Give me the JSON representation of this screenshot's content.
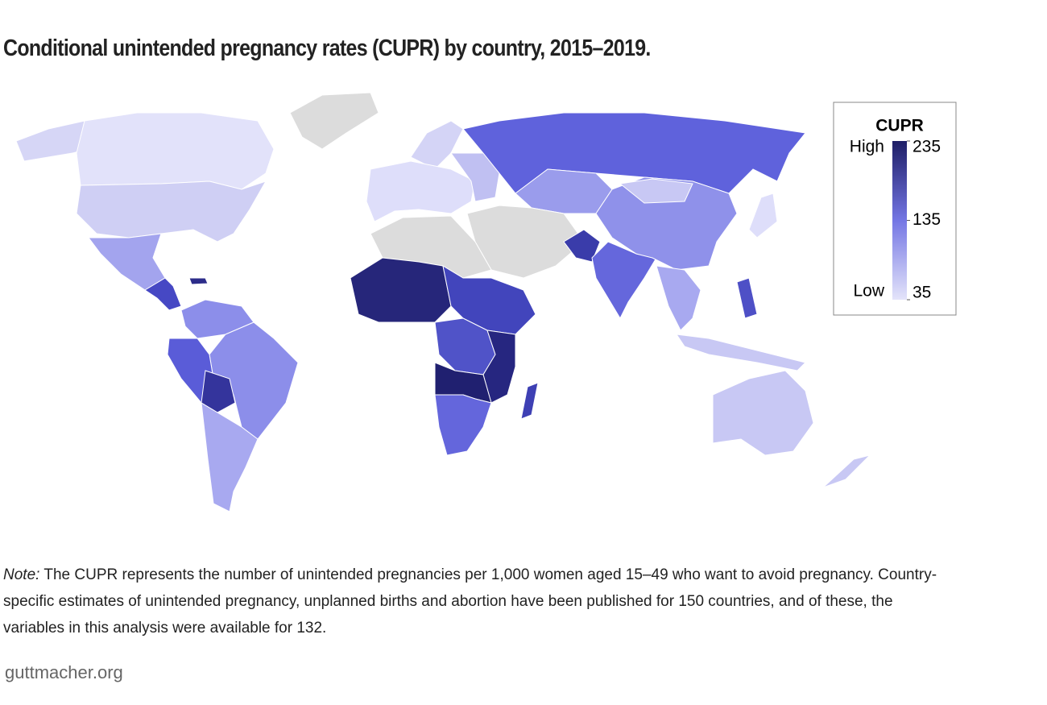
{
  "header": {
    "title": "Conditional unintended pregnancy rates (CUPR) by country, 2015–2019."
  },
  "legend": {
    "title": "CUPR",
    "high": "High",
    "low": "Low",
    "scale": [
      35,
      235
    ],
    "ticks": [
      235,
      135,
      35
    ],
    "colors": [
      "#e4e4fa",
      "#7476e4",
      "#1e1e66"
    ]
  },
  "note": {
    "label": "Note:",
    "text": "The CUPR represents the number of unintended pregnancies per 1,000 women aged 15–49 who want to avoid pregnancy. Country-specific estimates of unintended pregnancy, unplanned births and abortion have been published for 150 countries, and of these, the variables in this analysis were available for 132."
  },
  "source": "guttmacher.org"
}
